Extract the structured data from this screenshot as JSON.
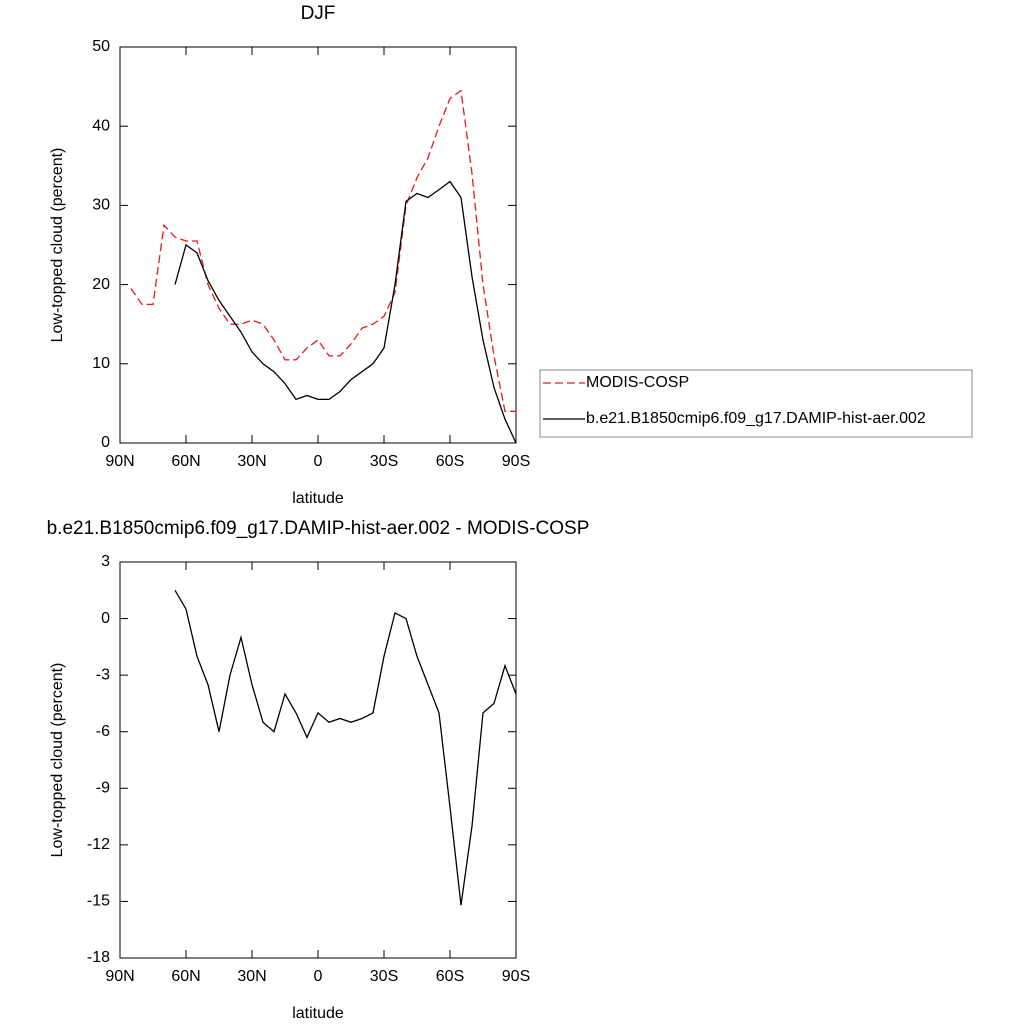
{
  "chart_data": [
    {
      "type": "line",
      "title": "DJF",
      "xlabel": "latitude",
      "ylabel": "Low-topped cloud (percent)",
      "x": [
        85,
        80,
        75,
        70,
        65,
        60,
        55,
        50,
        45,
        40,
        35,
        30,
        25,
        20,
        15,
        10,
        5,
        0,
        -5,
        -10,
        -15,
        -20,
        -25,
        -30,
        -35,
        -40,
        -45,
        -50,
        -55,
        -60,
        -65,
        -70,
        -75,
        -80,
        -85,
        -90
      ],
      "series": [
        {
          "name": "MODIS-COSP",
          "color": "#e41a1c",
          "dash": true,
          "values": [
            19.5,
            17.5,
            17.5,
            27.5,
            26,
            25.5,
            25.5,
            20,
            17,
            15,
            15,
            15.5,
            15,
            13,
            10.5,
            10.5,
            12,
            13,
            11,
            11,
            12.5,
            14.5,
            15,
            16,
            19,
            30,
            33.5,
            36,
            40,
            43.5,
            44.5,
            34,
            20,
            11,
            4,
            4
          ]
        },
        {
          "name": "b.e21.B1850cmip6.f09_g17.DAMIP-hist-aer.002",
          "color": "#000000",
          "dash": false,
          "values": [
            null,
            null,
            null,
            null,
            20,
            25,
            24,
            20.5,
            18,
            16,
            14,
            11.5,
            10,
            9,
            7.5,
            5.5,
            6,
            5.5,
            5.5,
            6.5,
            8,
            9,
            10,
            12,
            20,
            30.5,
            31.5,
            31,
            32,
            33,
            31,
            21,
            13,
            7,
            3,
            0
          ]
        }
      ],
      "xlim": [
        90,
        -90
      ],
      "xticks": [
        {
          "value": 90,
          "label": "90N"
        },
        {
          "value": 60,
          "label": "60N"
        },
        {
          "value": 30,
          "label": "30N"
        },
        0,
        {
          "value": -30,
          "label": "30S"
        },
        {
          "value": -60,
          "label": "60S"
        },
        {
          "value": -90,
          "label": "90S"
        }
      ],
      "ylim": [
        0,
        50
      ],
      "yticks": [
        0,
        10,
        20,
        30,
        40,
        50
      ]
    },
    {
      "type": "line",
      "title": "b.e21.B1850cmip6.f09_g17.DAMIP-hist-aer.002 - MODIS-COSP",
      "xlabel": "latitude",
      "ylabel": "Low-topped cloud (percent)",
      "x": [
        85,
        80,
        75,
        70,
        65,
        60,
        55,
        50,
        45,
        40,
        35,
        30,
        25,
        20,
        15,
        10,
        5,
        0,
        -5,
        -10,
        -15,
        -20,
        -25,
        -30,
        -35,
        -40,
        -45,
        -50,
        -55,
        -60,
        -65,
        -70,
        -75,
        -80,
        -85,
        -90
      ],
      "series": [
        {
          "color": "#000000",
          "dash": false,
          "values": [
            null,
            null,
            null,
            null,
            1.5,
            0.5,
            -2,
            -3.5,
            -6,
            -3,
            -1,
            -3.5,
            -5.5,
            -6,
            -4,
            -5,
            -6.3,
            -5,
            -5.5,
            -5.3,
            -5.5,
            -5.3,
            -5,
            -2,
            0.3,
            0,
            -2,
            -3.5,
            -5,
            -10,
            -15.2,
            -11,
            -5,
            -4.5,
            -2.5,
            -4
          ]
        }
      ],
      "xlim": [
        90,
        -90
      ],
      "xticks": [
        {
          "value": 90,
          "label": "90N"
        },
        {
          "value": 60,
          "label": "60N"
        },
        {
          "value": 30,
          "label": "30N"
        },
        0,
        {
          "value": -30,
          "label": "30S"
        },
        {
          "value": -60,
          "label": "60S"
        },
        {
          "value": -90,
          "label": "90S"
        }
      ],
      "ylim": [
        -18,
        3
      ],
      "yticks": [
        -18,
        -15,
        -12,
        -9,
        -6,
        -3,
        0,
        3
      ]
    }
  ]
}
